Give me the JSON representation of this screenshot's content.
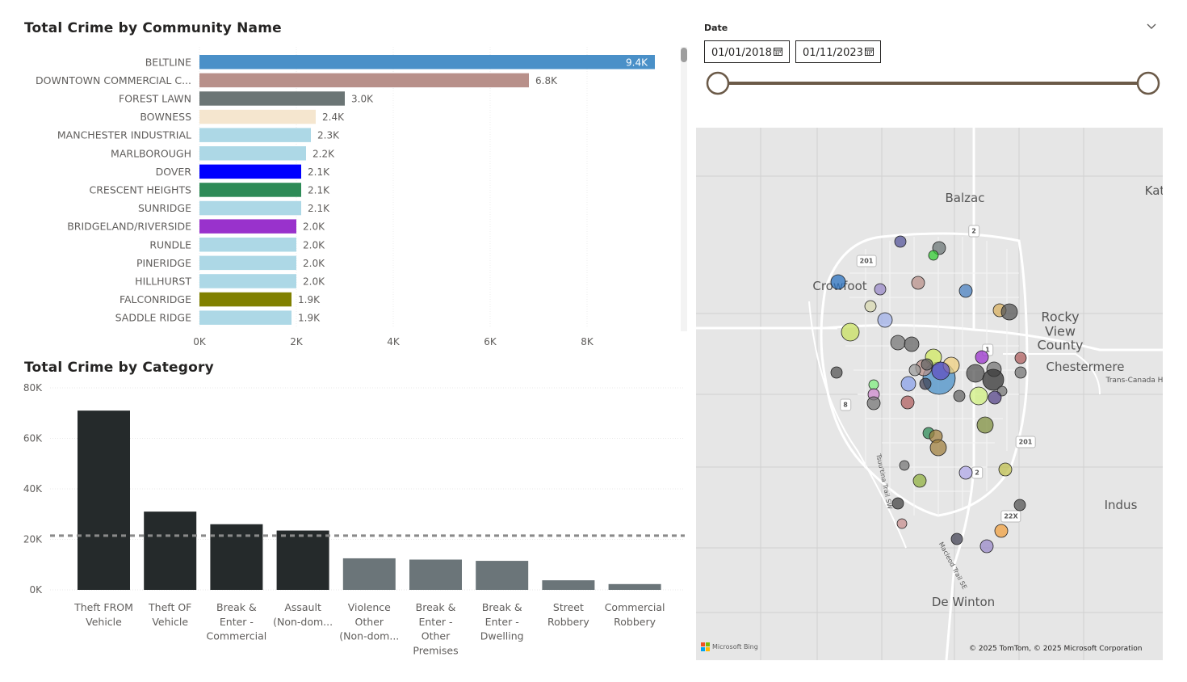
{
  "community_chart": {
    "title": "Total Crime by Community Name",
    "chart_data": {
      "type": "bar",
      "orientation": "horizontal",
      "categories": [
        "BELTLINE",
        "DOWNTOWN COMMERCIAL C...",
        "FOREST LAWN",
        "BOWNESS",
        "MANCHESTER INDUSTRIAL",
        "MARLBOROUGH",
        "DOVER",
        "CRESCENT HEIGHTS",
        "SUNRIDGE",
        "BRIDGELAND/RIVERSIDE",
        "RUNDLE",
        "PINERIDGE",
        "HILLHURST",
        "FALCONRIDGE",
        "SADDLE RIDGE"
      ],
      "values": [
        9400,
        6800,
        3000,
        2400,
        2300,
        2200,
        2100,
        2100,
        2100,
        2000,
        2000,
        2000,
        2000,
        1900,
        1900
      ],
      "value_labels": [
        "9.4K",
        "6.8K",
        "3.0K",
        "2.4K",
        "2.3K",
        "2.2K",
        "2.1K",
        "2.1K",
        "2.1K",
        "2.0K",
        "2.0K",
        "2.0K",
        "2.0K",
        "1.9K",
        "1.9K"
      ],
      "colors": [
        "#4a90c8",
        "#b8908a",
        "#6b7575",
        "#f5e6cf",
        "#add8e6",
        "#add8e6",
        "#0000ff",
        "#2e8b57",
        "#add8e6",
        "#9932cc",
        "#add8e6",
        "#add8e6",
        "#add8e6",
        "#808000",
        "#add8e6"
      ],
      "xlim": [
        0,
        9400
      ],
      "x_ticks": [
        0,
        2000,
        4000,
        6000,
        8000
      ],
      "x_tick_labels": [
        "0K",
        "2K",
        "4K",
        "6K",
        "8K"
      ],
      "grid": true
    }
  },
  "category_chart": {
    "title": "Total Crime by Category",
    "chart_data": {
      "type": "bar",
      "categories": [
        [
          "Theft FROM",
          "Vehicle"
        ],
        [
          "Theft OF",
          "Vehicle"
        ],
        [
          "Break &",
          "Enter -",
          "Commercial"
        ],
        [
          "Assault",
          "(Non-dom..."
        ],
        [
          "Violence",
          "Other",
          "(Non-dom..."
        ],
        [
          "Break &",
          "Enter -",
          "Other",
          "Premises"
        ],
        [
          "Break &",
          "Enter -",
          "Dwelling"
        ],
        [
          "Street",
          "Robbery"
        ],
        [
          "Commercial",
          "Robbery"
        ]
      ],
      "values": [
        71000,
        31000,
        26000,
        23500,
        12500,
        12000,
        11500,
        3800,
        2300
      ],
      "colors": [
        "#252a2b",
        "#252a2b",
        "#252a2b",
        "#252a2b",
        "#6b7579",
        "#6b7579",
        "#6b7579",
        "#6b7579",
        "#6b7579"
      ],
      "ylim": [
        0,
        80000
      ],
      "y_ticks": [
        0,
        20000,
        40000,
        60000,
        80000
      ],
      "y_tick_labels": [
        "0K",
        "20K",
        "40K",
        "60K",
        "80K"
      ],
      "average_line": 21500,
      "grid": true
    }
  },
  "date_slicer": {
    "label": "Date",
    "start": "01/01/2018",
    "end": "01/11/2023"
  },
  "map": {
    "places": [
      {
        "name": "Balzac",
        "x": 1195,
        "y": 245,
        "size": 15
      },
      {
        "name": "Kat",
        "x": 1430,
        "y": 236,
        "size": 15
      },
      {
        "name": "Crowfoot",
        "x": 1040,
        "y": 354,
        "size": 15
      },
      {
        "name": "Rocky",
        "x": 1313,
        "y": 392,
        "size": 16
      },
      {
        "name": "View",
        "x": 1313,
        "y": 410,
        "size": 16
      },
      {
        "name": "County",
        "x": 1313,
        "y": 427,
        "size": 16
      },
      {
        "name": "Chestermere",
        "x": 1344,
        "y": 454,
        "size": 15
      },
      {
        "name": "Trans-Canada H",
        "x": 1405,
        "y": 471,
        "size": 9
      },
      {
        "name": "Indus",
        "x": 1388,
        "y": 625,
        "size": 15
      },
      {
        "name": "De Winton",
        "x": 1193,
        "y": 745,
        "size": 15
      },
      {
        "name": "Tsuu'tina Trail SW",
        "x": 1095,
        "y": 596,
        "size": 8
      },
      {
        "name": "Macleod Trail SE",
        "x": 1180,
        "y": 700,
        "size": 8
      }
    ],
    "shields": [
      {
        "label": "2",
        "x": 1206,
        "y": 286
      },
      {
        "label": "201",
        "x": 1073,
        "y": 323
      },
      {
        "label": "1",
        "x": 1223,
        "y": 433
      },
      {
        "label": "8",
        "x": 1047,
        "y": 501
      },
      {
        "label": "201",
        "x": 1270,
        "y": 547
      },
      {
        "label": "2",
        "x": 1210,
        "y": 585
      },
      {
        "label": "22X",
        "x": 1252,
        "y": 639
      }
    ],
    "bing_text": "Microsoft Bing",
    "copyright": "© 2025 TomTom, © 2025 Microsoft Corporation"
  }
}
